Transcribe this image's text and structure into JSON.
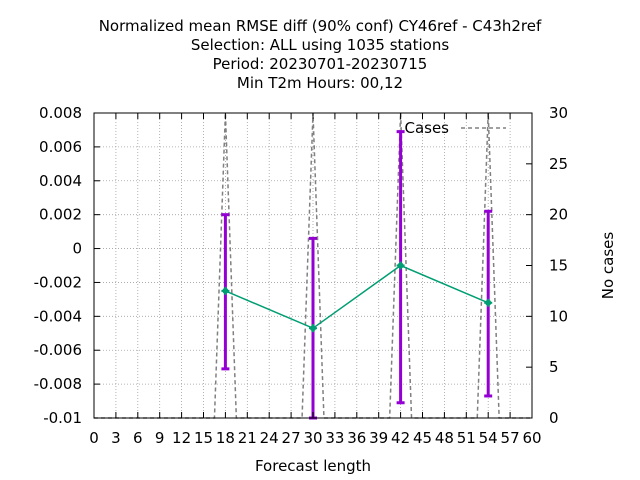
{
  "title_lines": [
    "Normalized mean RMSE diff (90% conf) CY46ref - C43h2ref",
    "Selection: ALL using  1035 stations",
    "Period: 20230701-20230715",
    "Min T2m    Hours:  00,12"
  ],
  "chart_data": {
    "type": "line",
    "xlabel": "Forecast length",
    "ylabel": "",
    "y2label": "No cases",
    "xlim": [
      0,
      60
    ],
    "ylim": [
      -0.01,
      0.008
    ],
    "y2lim": [
      0,
      30
    ],
    "x_ticks": [
      0,
      3,
      6,
      9,
      12,
      15,
      18,
      21,
      24,
      27,
      30,
      33,
      36,
      39,
      42,
      45,
      48,
      51,
      54,
      57,
      60
    ],
    "y_ticks": [
      "0.008",
      "0.006",
      "0.004",
      "0.002",
      "0",
      "-0.002",
      "-0.004",
      "-0.006",
      "-0.008",
      "-0.01"
    ],
    "y_tick_values": [
      0.008,
      0.006,
      0.004,
      0.002,
      0,
      -0.002,
      -0.004,
      -0.006,
      -0.008,
      -0.01
    ],
    "y2_ticks": [
      "30",
      "25",
      "20",
      "15",
      "10",
      "5",
      "0"
    ],
    "y2_tick_values": [
      30,
      25,
      20,
      15,
      10,
      5,
      0
    ],
    "grid": true,
    "legend_placement": "top-right",
    "series": [
      {
        "name": "",
        "x": [
          18,
          30,
          42,
          54
        ],
        "y": [
          -0.0025,
          -0.0047,
          -0.001,
          -0.0032
        ],
        "err_low": [
          -0.0071,
          -0.01,
          -0.0091,
          -0.0087
        ],
        "err_high": [
          0.002,
          0.0006,
          0.0069,
          0.0022
        ],
        "color": "#009e73",
        "error_color": "#9400d3"
      },
      {
        "name": "Cases",
        "x": [
          0,
          16.5,
          18,
          19.5,
          28.5,
          30,
          31.5,
          40.5,
          42,
          43.5,
          52.5,
          54,
          55.5,
          60
        ],
        "y": [
          0,
          0,
          30,
          0,
          0,
          30,
          0,
          0,
          30,
          0,
          0,
          30,
          0,
          0
        ],
        "axis": "y2",
        "color": "#808080",
        "dash": true
      }
    ]
  }
}
